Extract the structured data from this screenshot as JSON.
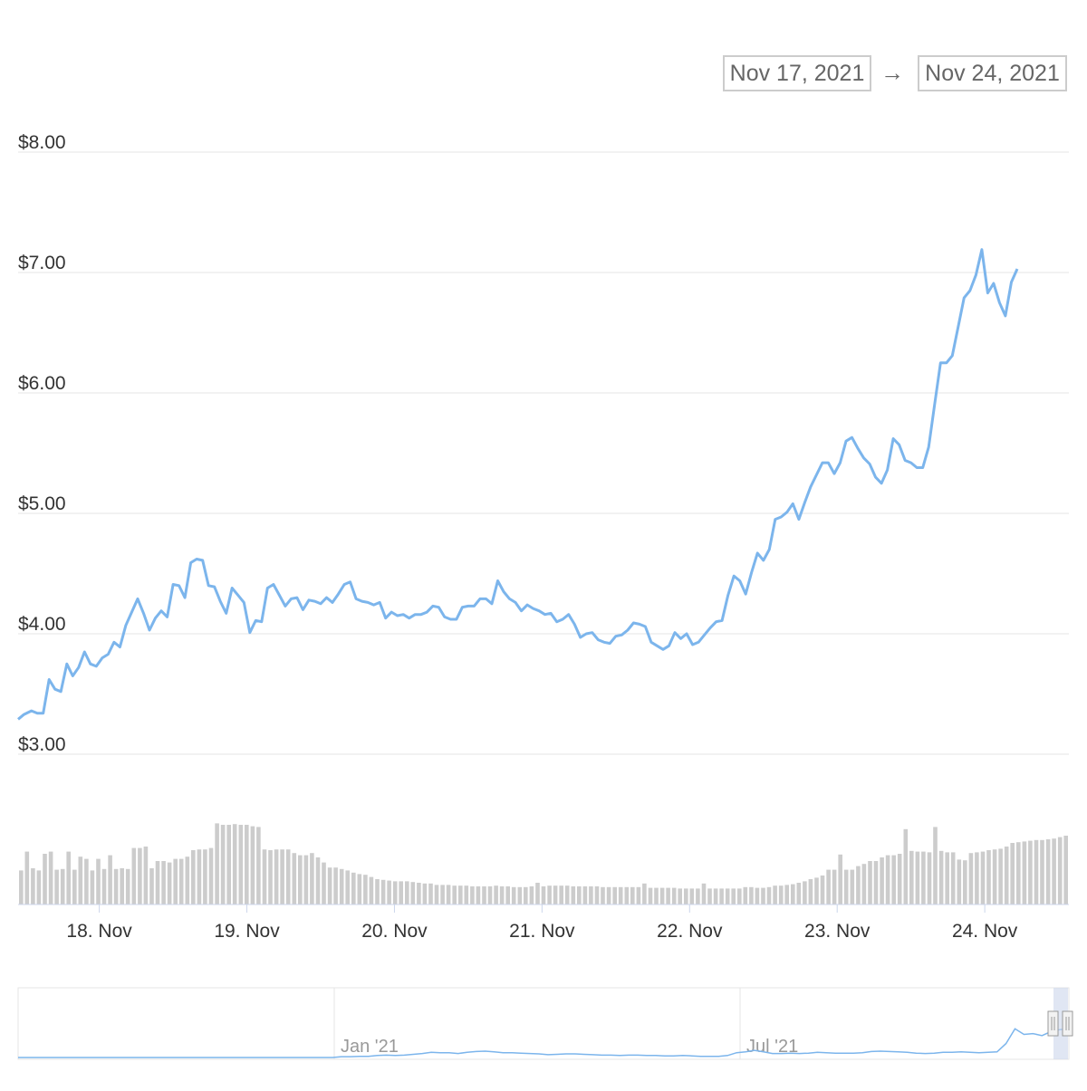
{
  "date_range": {
    "from": "Nov 17, 2021",
    "arrow": "→",
    "to": "Nov 24, 2021"
  },
  "colors": {
    "line": "#7cb5ec",
    "volume": "#cccccc",
    "grid": "#e6e6e6",
    "axis_text": "#333333",
    "navigator_mask": "#ccd6eb"
  },
  "chart_data": {
    "type": "line",
    "y_axis": {
      "min": 3,
      "max": 8,
      "ticks": [
        "$8.00",
        "$7.00",
        "$6.00",
        "$5.00",
        "$4.00",
        "$3.00"
      ],
      "tick_values": [
        8,
        7,
        6,
        5,
        4,
        3
      ],
      "grid": true
    },
    "x_axis": {
      "ticks": [
        "18. Nov",
        "19. Nov",
        "20. Nov",
        "21. Nov",
        "22. Nov",
        "23. Nov",
        "24. Nov"
      ],
      "tick_days": [
        1,
        2,
        3,
        4,
        5,
        6,
        7
      ],
      "range_days": [
        0.45,
        7.57
      ]
    },
    "series": [
      {
        "type": "line",
        "points": [
          [
            0.45,
            3.29
          ],
          [
            0.49,
            3.33
          ],
          [
            0.54,
            3.36
          ],
          [
            0.58,
            3.34
          ],
          [
            0.62,
            3.34
          ],
          [
            0.66,
            3.62
          ],
          [
            0.7,
            3.54
          ],
          [
            0.74,
            3.52
          ],
          [
            0.78,
            3.75
          ],
          [
            0.82,
            3.65
          ],
          [
            0.86,
            3.72
          ],
          [
            0.9,
            3.85
          ],
          [
            0.94,
            3.75
          ],
          [
            0.98,
            3.73
          ],
          [
            1.02,
            3.8
          ],
          [
            1.06,
            3.83
          ],
          [
            1.1,
            3.93
          ],
          [
            1.14,
            3.89
          ],
          [
            1.18,
            4.07
          ],
          [
            1.22,
            4.18
          ],
          [
            1.26,
            4.29
          ],
          [
            1.3,
            4.17
          ],
          [
            1.34,
            4.03
          ],
          [
            1.38,
            4.13
          ],
          [
            1.42,
            4.19
          ],
          [
            1.46,
            4.14
          ],
          [
            1.5,
            4.41
          ],
          [
            1.54,
            4.4
          ],
          [
            1.58,
            4.3
          ],
          [
            1.62,
            4.59
          ],
          [
            1.66,
            4.62
          ],
          [
            1.7,
            4.61
          ],
          [
            1.74,
            4.4
          ],
          [
            1.78,
            4.39
          ],
          [
            1.82,
            4.27
          ],
          [
            1.86,
            4.17
          ],
          [
            1.9,
            4.38
          ],
          [
            1.94,
            4.32
          ],
          [
            1.98,
            4.26
          ],
          [
            2.02,
            4.01
          ],
          [
            2.06,
            4.11
          ],
          [
            2.1,
            4.1
          ],
          [
            2.14,
            4.38
          ],
          [
            2.18,
            4.41
          ],
          [
            2.22,
            4.32
          ],
          [
            2.26,
            4.23
          ],
          [
            2.3,
            4.29
          ],
          [
            2.34,
            4.3
          ],
          [
            2.38,
            4.2
          ],
          [
            2.42,
            4.28
          ],
          [
            2.46,
            4.27
          ],
          [
            2.5,
            4.25
          ],
          [
            2.54,
            4.3
          ],
          [
            2.58,
            4.26
          ],
          [
            2.62,
            4.33
          ],
          [
            2.66,
            4.41
          ],
          [
            2.7,
            4.43
          ],
          [
            2.74,
            4.29
          ],
          [
            2.78,
            4.27
          ],
          [
            2.82,
            4.26
          ],
          [
            2.86,
            4.24
          ],
          [
            2.9,
            4.26
          ],
          [
            2.94,
            4.13
          ],
          [
            2.98,
            4.18
          ],
          [
            3.02,
            4.15
          ],
          [
            3.06,
            4.16
          ],
          [
            3.1,
            4.13
          ],
          [
            3.14,
            4.16
          ],
          [
            3.18,
            4.16
          ],
          [
            3.22,
            4.18
          ],
          [
            3.26,
            4.23
          ],
          [
            3.3,
            4.22
          ],
          [
            3.34,
            4.14
          ],
          [
            3.38,
            4.12
          ],
          [
            3.42,
            4.12
          ],
          [
            3.46,
            4.22
          ],
          [
            3.5,
            4.23
          ],
          [
            3.54,
            4.23
          ],
          [
            3.58,
            4.29
          ],
          [
            3.62,
            4.29
          ],
          [
            3.66,
            4.25
          ],
          [
            3.7,
            4.44
          ],
          [
            3.74,
            4.35
          ],
          [
            3.78,
            4.29
          ],
          [
            3.82,
            4.26
          ],
          [
            3.86,
            4.19
          ],
          [
            3.9,
            4.24
          ],
          [
            3.94,
            4.21
          ],
          [
            3.98,
            4.19
          ],
          [
            4.02,
            4.16
          ],
          [
            4.06,
            4.17
          ],
          [
            4.1,
            4.1
          ],
          [
            4.14,
            4.12
          ],
          [
            4.18,
            4.16
          ],
          [
            4.22,
            4.08
          ],
          [
            4.26,
            3.97
          ],
          [
            4.3,
            4.0
          ],
          [
            4.34,
            4.01
          ],
          [
            4.38,
            3.95
          ],
          [
            4.42,
            3.93
          ],
          [
            4.46,
            3.92
          ],
          [
            4.5,
            3.98
          ],
          [
            4.54,
            3.99
          ],
          [
            4.58,
            4.03
          ],
          [
            4.62,
            4.09
          ],
          [
            4.66,
            4.08
          ],
          [
            4.7,
            4.06
          ],
          [
            4.74,
            3.93
          ],
          [
            4.78,
            3.9
          ],
          [
            4.82,
            3.87
          ],
          [
            4.86,
            3.9
          ],
          [
            4.9,
            4.01
          ],
          [
            4.94,
            3.96
          ],
          [
            4.98,
            4.0
          ],
          [
            5.02,
            3.91
          ],
          [
            5.06,
            3.93
          ],
          [
            5.1,
            3.99
          ],
          [
            5.14,
            4.05
          ],
          [
            5.18,
            4.1
          ],
          [
            5.22,
            4.11
          ],
          [
            5.26,
            4.32
          ],
          [
            5.3,
            4.48
          ],
          [
            5.34,
            4.44
          ],
          [
            5.38,
            4.33
          ],
          [
            5.42,
            4.51
          ],
          [
            5.46,
            4.67
          ],
          [
            5.5,
            4.61
          ],
          [
            5.54,
            4.7
          ],
          [
            5.58,
            4.95
          ],
          [
            5.62,
            4.97
          ],
          [
            5.66,
            5.01
          ],
          [
            5.7,
            5.08
          ],
          [
            5.74,
            4.95
          ],
          [
            5.78,
            5.09
          ],
          [
            5.82,
            5.22
          ],
          [
            5.86,
            5.32
          ],
          [
            5.9,
            5.42
          ],
          [
            5.94,
            5.42
          ],
          [
            5.98,
            5.33
          ],
          [
            6.02,
            5.42
          ],
          [
            6.06,
            5.6
          ],
          [
            6.1,
            5.63
          ],
          [
            6.14,
            5.54
          ],
          [
            6.18,
            5.46
          ],
          [
            6.22,
            5.41
          ],
          [
            6.26,
            5.3
          ],
          [
            6.3,
            5.25
          ],
          [
            6.34,
            5.36
          ],
          [
            6.38,
            5.62
          ],
          [
            6.42,
            5.57
          ],
          [
            6.46,
            5.44
          ],
          [
            6.5,
            5.42
          ],
          [
            6.54,
            5.38
          ],
          [
            6.58,
            5.38
          ],
          [
            6.62,
            5.55
          ],
          [
            6.66,
            5.9
          ],
          [
            6.7,
            6.25
          ],
          [
            6.74,
            6.25
          ],
          [
            6.78,
            6.31
          ],
          [
            6.82,
            6.55
          ],
          [
            6.86,
            6.79
          ],
          [
            6.9,
            6.85
          ],
          [
            6.94,
            6.98
          ],
          [
            6.98,
            7.19
          ],
          [
            7.02,
            6.83
          ],
          [
            7.06,
            6.91
          ],
          [
            7.1,
            6.75
          ],
          [
            7.14,
            6.64
          ],
          [
            7.18,
            6.92
          ],
          [
            7.22,
            7.03
          ]
        ]
      },
      {
        "type": "column",
        "description_free": true,
        "volume_relative": [
          0.47,
          0.73,
          0.5,
          0.47,
          0.7,
          0.73,
          0.48,
          0.49,
          0.73,
          0.48,
          0.66,
          0.63,
          0.47,
          0.63,
          0.49,
          0.68,
          0.49,
          0.5,
          0.49,
          0.78,
          0.78,
          0.8,
          0.5,
          0.6,
          0.6,
          0.58,
          0.63,
          0.63,
          0.66,
          0.75,
          0.76,
          0.76,
          0.78,
          1.12,
          1.1,
          1.1,
          1.11,
          1.1,
          1.1,
          1.08,
          1.07,
          0.76,
          0.75,
          0.76,
          0.76,
          0.76,
          0.71,
          0.68,
          0.68,
          0.71,
          0.65,
          0.58,
          0.51,
          0.51,
          0.49,
          0.47,
          0.44,
          0.42,
          0.41,
          0.38,
          0.35,
          0.34,
          0.33,
          0.32,
          0.32,
          0.32,
          0.31,
          0.3,
          0.29,
          0.29,
          0.27,
          0.27,
          0.27,
          0.26,
          0.26,
          0.26,
          0.25,
          0.25,
          0.25,
          0.25,
          0.26,
          0.25,
          0.25,
          0.24,
          0.24,
          0.24,
          0.25,
          0.3,
          0.25,
          0.26,
          0.26,
          0.26,
          0.26,
          0.25,
          0.25,
          0.25,
          0.25,
          0.25,
          0.24,
          0.24,
          0.24,
          0.24,
          0.24,
          0.24,
          0.24,
          0.29,
          0.23,
          0.23,
          0.23,
          0.23,
          0.23,
          0.22,
          0.22,
          0.22,
          0.22,
          0.29,
          0.22,
          0.22,
          0.22,
          0.22,
          0.22,
          0.22,
          0.24,
          0.24,
          0.23,
          0.23,
          0.24,
          0.26,
          0.26,
          0.27,
          0.28,
          0.3,
          0.32,
          0.35,
          0.37,
          0.4,
          0.48,
          0.48,
          0.69,
          0.48,
          0.48,
          0.53,
          0.56,
          0.6,
          0.6,
          0.65,
          0.68,
          0.68,
          0.7,
          1.04,
          0.74,
          0.73,
          0.73,
          0.72,
          1.07,
          0.74,
          0.72,
          0.72,
          0.62,
          0.61,
          0.71,
          0.72,
          0.73,
          0.75,
          0.76,
          0.77,
          0.8,
          0.85,
          0.86,
          0.87,
          0.88,
          0.89,
          0.89,
          0.9,
          0.91,
          0.93,
          0.95
        ]
      }
    ]
  },
  "navigator": {
    "labels": [
      "Jan '21",
      "Jul '21"
    ],
    "line": [
      0.0,
      0.0,
      0.0,
      0.0,
      0.0,
      0.0,
      0.0,
      0.0,
      0.0,
      0.0,
      0.0,
      0.0,
      0.0,
      0.0,
      0.0,
      0.0,
      0.0,
      0.0,
      0.0,
      0.0,
      0.0,
      0.0,
      0.0,
      0.0,
      0.0,
      0.0,
      0.0,
      0.0,
      0.0,
      0.0,
      0.0,
      0.0,
      0.0,
      0.0,
      0.0,
      0.0,
      0.02,
      0.02,
      0.03,
      0.03,
      0.05,
      0.06,
      0.05,
      0.06,
      0.08,
      0.1,
      0.13,
      0.12,
      0.12,
      0.1,
      0.13,
      0.15,
      0.16,
      0.14,
      0.12,
      0.12,
      0.11,
      0.1,
      0.09,
      0.07,
      0.08,
      0.09,
      0.09,
      0.08,
      0.07,
      0.06,
      0.06,
      0.05,
      0.06,
      0.06,
      0.05,
      0.05,
      0.04,
      0.04,
      0.05,
      0.04,
      0.03,
      0.03,
      0.03,
      0.05,
      0.12,
      0.14,
      0.18,
      0.14,
      0.1,
      0.1,
      0.11,
      0.1,
      0.11,
      0.13,
      0.12,
      0.11,
      0.11,
      0.11,
      0.12,
      0.15,
      0.16,
      0.15,
      0.14,
      0.13,
      0.11,
      0.1,
      0.11,
      0.13,
      0.13,
      0.14,
      0.13,
      0.12,
      0.13,
      0.14,
      0.35,
      0.72,
      0.58,
      0.6,
      0.55,
      0.65,
      0.7,
      0.72
    ]
  }
}
